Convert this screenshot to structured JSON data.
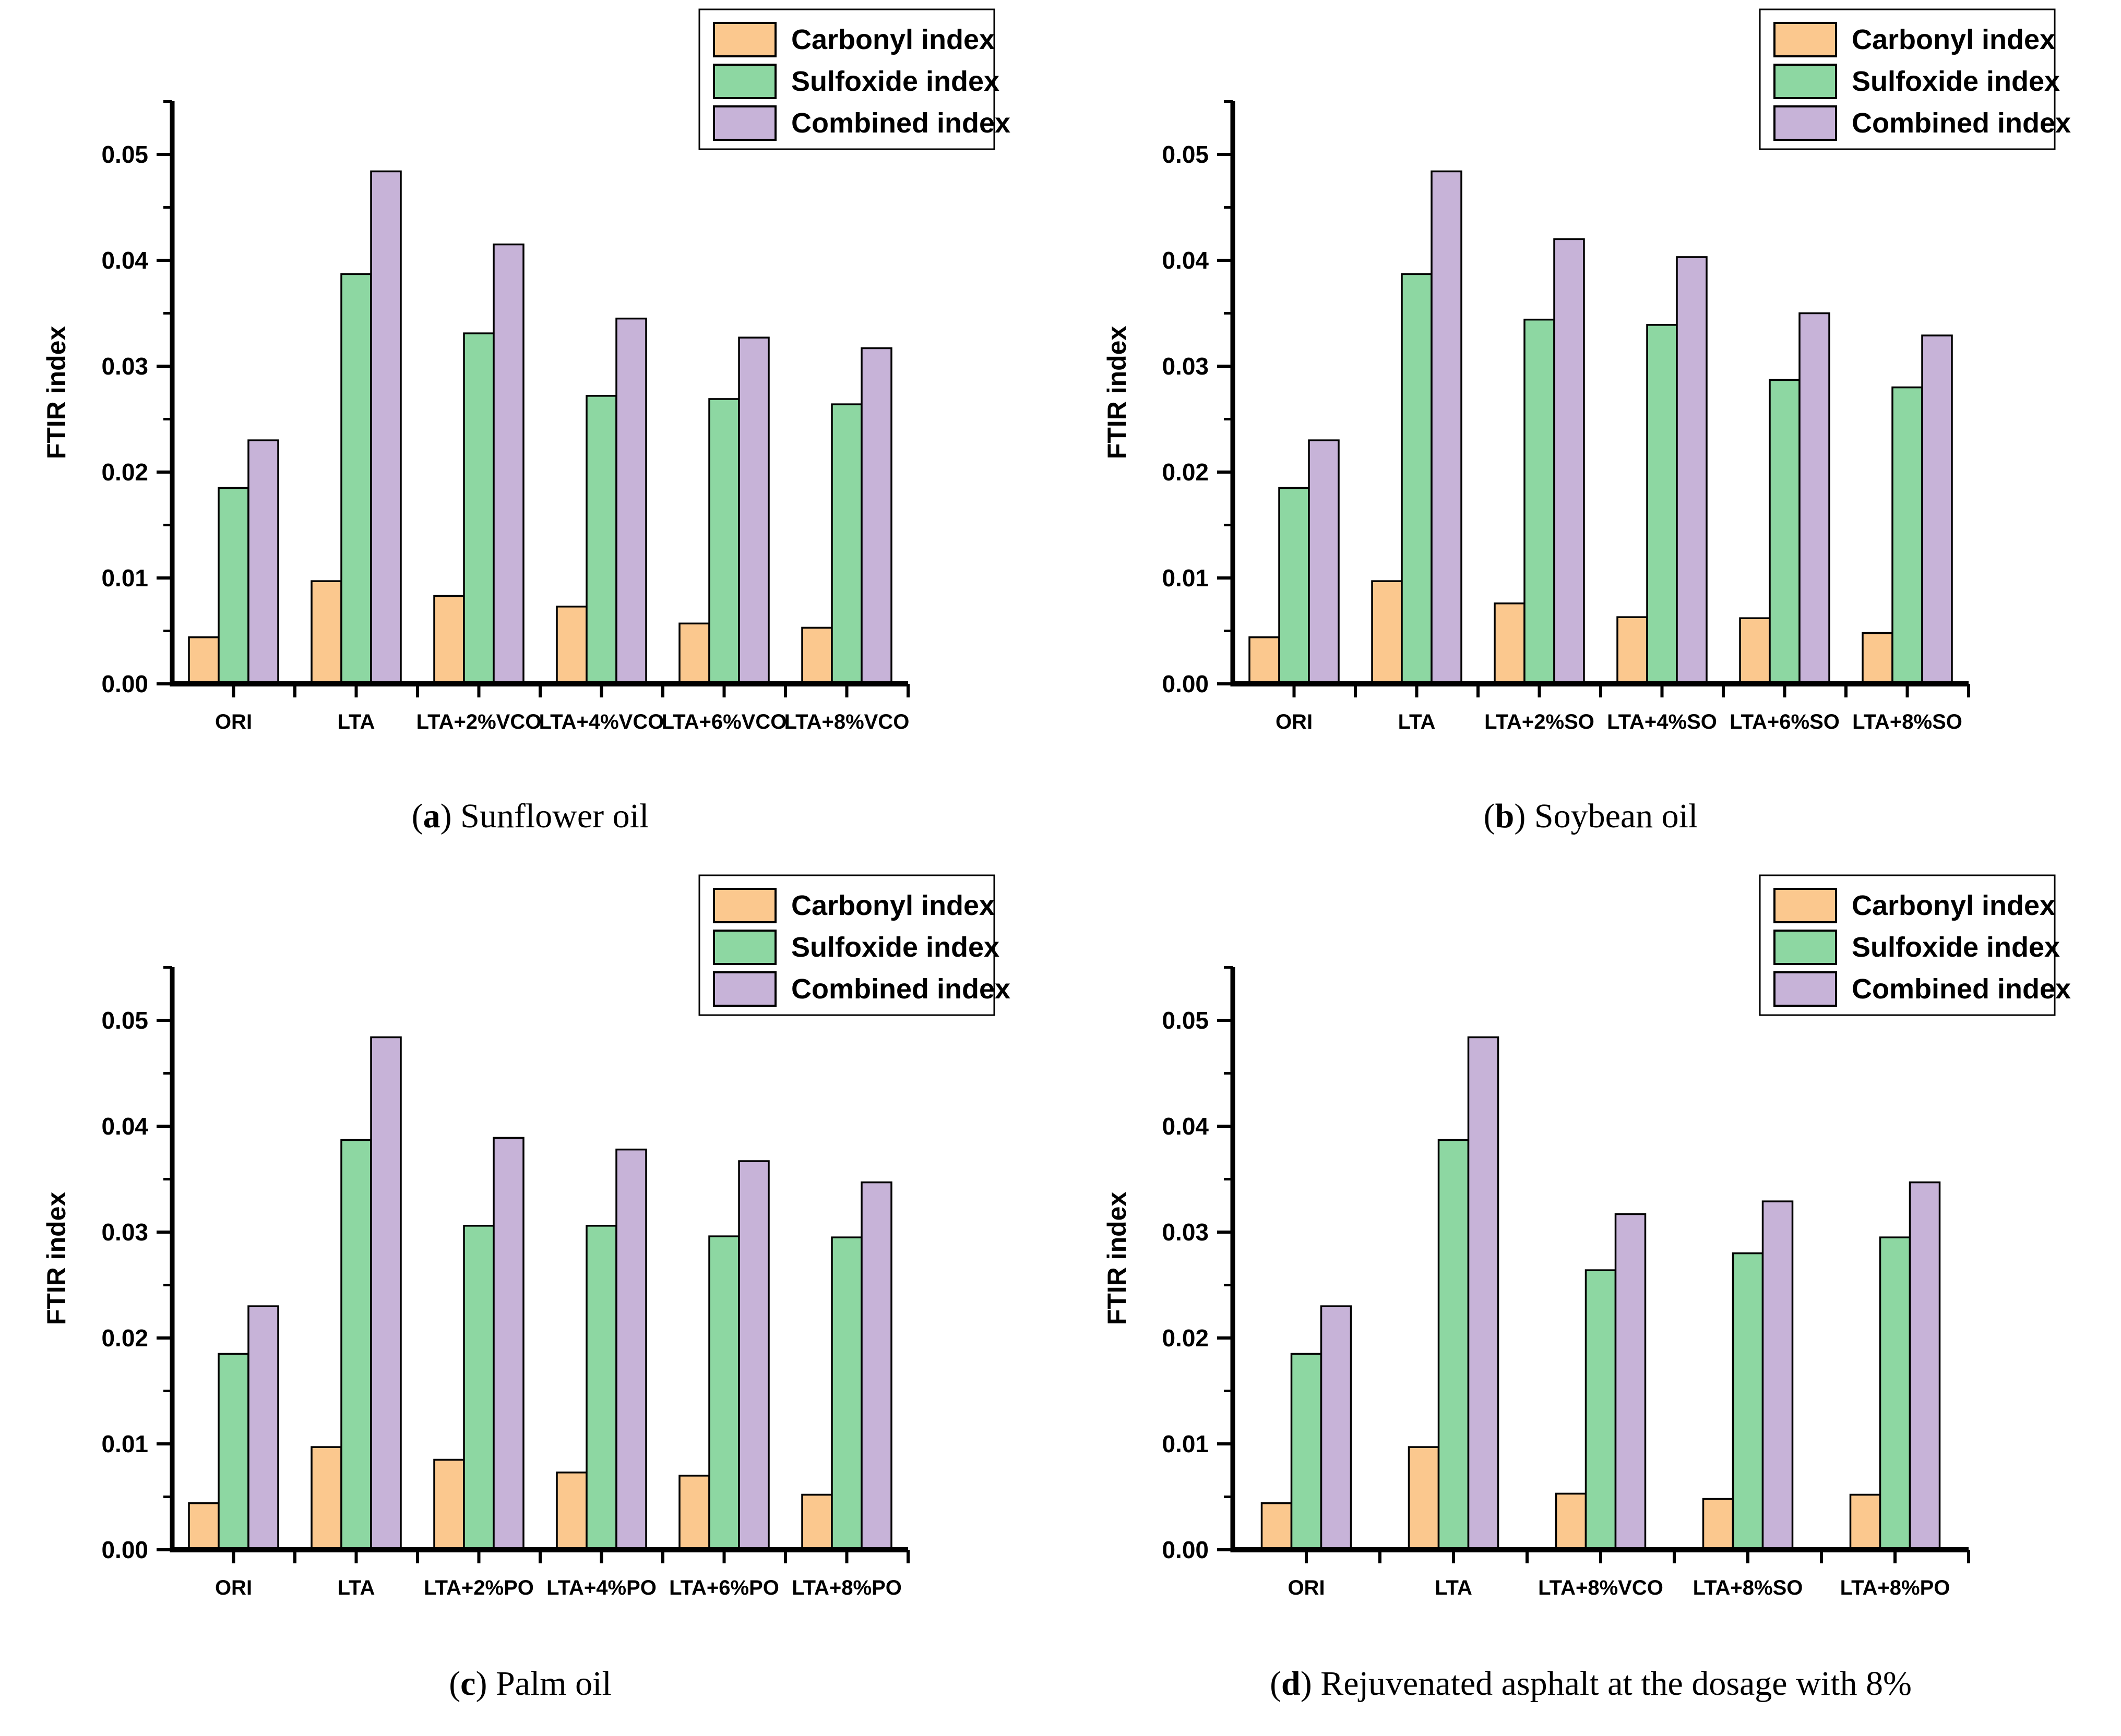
{
  "legend": {
    "items": [
      {
        "label": "Carbonyl index",
        "color": "#FBC88E"
      },
      {
        "label": "Sulfoxide index",
        "color": "#8DD7A2"
      },
      {
        "label": "Combined index",
        "color": "#C7B3D8"
      }
    ],
    "border_color": "#000000",
    "position": "top-right"
  },
  "style": {
    "bar_outline": "#000000",
    "axis_color": "#000000",
    "background": "#ffffff"
  },
  "captions": {
    "a": {
      "letter": "a",
      "text": " Sunflower oil"
    },
    "b": {
      "letter": "b",
      "text": " Soybean oil"
    },
    "c": {
      "letter": "c",
      "text": " Palm oil"
    },
    "d": {
      "letter": "d",
      "text": " Rejuvenated asphalt at the dosage with 8%"
    }
  },
  "chart_data": [
    {
      "id": "a",
      "type": "bar",
      "title": "Sunflower oil",
      "ylabel": "FTIR index",
      "ylim": [
        0,
        0.055
      ],
      "ytick_step": 0.01,
      "yminor_step": 0.005,
      "ytick_labels": [
        "0.00",
        "0.01",
        "0.02",
        "0.03",
        "0.04",
        "0.05"
      ],
      "grid": false,
      "legend_position": "top-right",
      "categories": [
        "ORI",
        "LTA",
        "LTA+2%VCO",
        "LTA+4%VCO",
        "LTA+6%VCO",
        "LTA+8%VCO"
      ],
      "series": [
        {
          "name": "Carbonyl index",
          "color": "#FBC88E",
          "values": [
            0.0044,
            0.0097,
            0.0083,
            0.0073,
            0.0057,
            0.0053
          ]
        },
        {
          "name": "Sulfoxide index",
          "color": "#8DD7A2",
          "values": [
            0.0185,
            0.0387,
            0.0331,
            0.0272,
            0.0269,
            0.0264
          ]
        },
        {
          "name": "Combined index",
          "color": "#C7B3D8",
          "values": [
            0.023,
            0.0484,
            0.0415,
            0.0345,
            0.0327,
            0.0317
          ]
        }
      ]
    },
    {
      "id": "b",
      "type": "bar",
      "title": "Soybean oil",
      "ylabel": "FTIR index",
      "ylim": [
        0,
        0.055
      ],
      "ytick_step": 0.01,
      "yminor_step": 0.005,
      "ytick_labels": [
        "0.00",
        "0.01",
        "0.02",
        "0.03",
        "0.04",
        "0.05"
      ],
      "grid": false,
      "legend_position": "top-right",
      "categories": [
        "ORI",
        "LTA",
        "LTA+2%SO",
        "LTA+4%SO",
        "LTA+6%SO",
        "LTA+8%SO"
      ],
      "series": [
        {
          "name": "Carbonyl index",
          "color": "#FBC88E",
          "values": [
            0.0044,
            0.0097,
            0.0076,
            0.0063,
            0.0062,
            0.0048
          ]
        },
        {
          "name": "Sulfoxide index",
          "color": "#8DD7A2",
          "values": [
            0.0185,
            0.0387,
            0.0344,
            0.0339,
            0.0287,
            0.028
          ]
        },
        {
          "name": "Combined index",
          "color": "#C7B3D8",
          "values": [
            0.023,
            0.0484,
            0.042,
            0.0403,
            0.035,
            0.0329
          ]
        }
      ]
    },
    {
      "id": "c",
      "type": "bar",
      "title": "Palm oil",
      "ylabel": "FTIR index",
      "ylim": [
        0,
        0.055
      ],
      "ytick_step": 0.01,
      "yminor_step": 0.005,
      "ytick_labels": [
        "0.00",
        "0.01",
        "0.02",
        "0.03",
        "0.04",
        "0.05"
      ],
      "grid": false,
      "legend_position": "top-right",
      "categories": [
        "ORI",
        "LTA",
        "LTA+2%PO",
        "LTA+4%PO",
        "LTA+6%PO",
        "LTA+8%PO"
      ],
      "series": [
        {
          "name": "Carbonyl index",
          "color": "#FBC88E",
          "values": [
            0.0044,
            0.0097,
            0.0085,
            0.0073,
            0.007,
            0.0052
          ]
        },
        {
          "name": "Sulfoxide index",
          "color": "#8DD7A2",
          "values": [
            0.0185,
            0.0387,
            0.0306,
            0.0306,
            0.0296,
            0.0295
          ]
        },
        {
          "name": "Combined index",
          "color": "#C7B3D8",
          "values": [
            0.023,
            0.0484,
            0.0389,
            0.0378,
            0.0367,
            0.0347
          ]
        }
      ]
    },
    {
      "id": "d",
      "type": "bar",
      "title": "Rejuvenated asphalt at the dosage with 8%",
      "ylabel": "FTIR  index",
      "ylim": [
        0,
        0.055
      ],
      "ytick_step": 0.01,
      "yminor_step": 0.005,
      "ytick_labels": [
        "0.00",
        "0.01",
        "0.02",
        "0.03",
        "0.04",
        "0.05"
      ],
      "grid": false,
      "legend_position": "top-right",
      "categories": [
        "ORI",
        "LTA",
        "LTA+8%VCO",
        "LTA+8%SO",
        "LTA+8%PO"
      ],
      "series": [
        {
          "name": "Carbonyl index",
          "color": "#FBC88E",
          "values": [
            0.0044,
            0.0097,
            0.0053,
            0.0048,
            0.0052
          ]
        },
        {
          "name": "Sulfoxide index",
          "color": "#8DD7A2",
          "values": [
            0.0185,
            0.0387,
            0.0264,
            0.028,
            0.0295
          ]
        },
        {
          "name": "Combined index",
          "color": "#C7B3D8",
          "values": [
            0.023,
            0.0484,
            0.0317,
            0.0329,
            0.0347
          ]
        }
      ]
    }
  ]
}
